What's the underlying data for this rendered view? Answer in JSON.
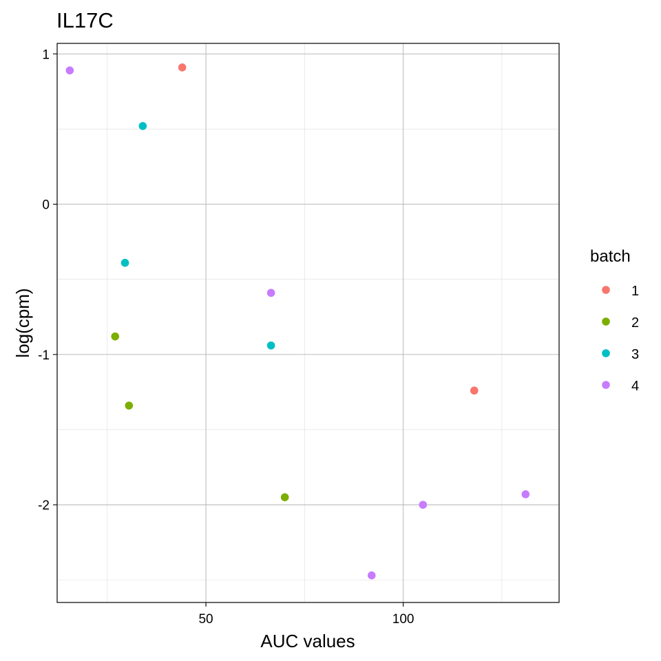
{
  "chart_data": {
    "type": "scatter",
    "title": "IL17C",
    "xlabel": "AUC values",
    "ylabel": "log(cpm)",
    "xlim": [
      12.3,
      139.5
    ],
    "ylim": [
      -2.65,
      1.07
    ],
    "x_ticks": [
      50,
      100
    ],
    "x_tick_labels": [
      "50",
      "100"
    ],
    "x_minor_ticks": [
      25,
      75,
      125
    ],
    "y_ticks": [
      1,
      0,
      -1,
      -2
    ],
    "y_tick_labels": [
      "1",
      "0",
      "-1",
      "-2"
    ],
    "y_minor_ticks": [
      0.5,
      -0.5,
      -1.5,
      -2.5
    ],
    "grid": true,
    "legend": {
      "title": "batch",
      "position": "right",
      "entries": [
        "1",
        "2",
        "3",
        "4"
      ]
    },
    "series": [
      {
        "name": "1",
        "color": "#F8766D",
        "points": [
          {
            "x": 44.0,
            "y": 0.91
          },
          {
            "x": 118.0,
            "y": -1.24
          }
        ]
      },
      {
        "name": "2",
        "color": "#7CAE00",
        "points": [
          {
            "x": 27.0,
            "y": -0.88
          },
          {
            "x": 30.5,
            "y": -1.34
          },
          {
            "x": 70.0,
            "y": -1.95
          }
        ]
      },
      {
        "name": "3",
        "color": "#00BFC4",
        "points": [
          {
            "x": 34.0,
            "y": 0.52
          },
          {
            "x": 29.5,
            "y": -0.39
          },
          {
            "x": 66.5,
            "y": -0.94
          }
        ]
      },
      {
        "name": "4",
        "color": "#C77CFF",
        "points": [
          {
            "x": 15.5,
            "y": 0.89
          },
          {
            "x": 66.5,
            "y": -0.59
          },
          {
            "x": 92.0,
            "y": -2.47
          },
          {
            "x": 105.0,
            "y": -2.0
          },
          {
            "x": 131.0,
            "y": -1.93
          }
        ]
      }
    ]
  }
}
